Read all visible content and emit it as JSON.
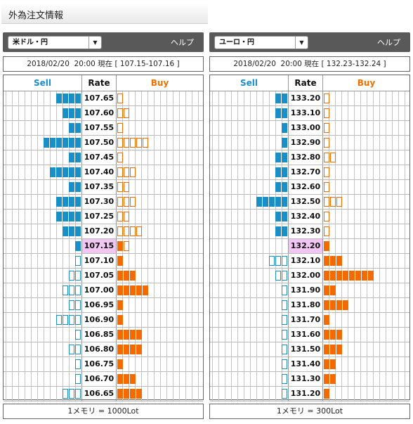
{
  "page_title": "外為注文情報",
  "help_label": "ヘルプ",
  "headers": {
    "sell": "Sell",
    "rate": "Rate",
    "buy": "Buy"
  },
  "colors": {
    "sell": "#1a8fc7",
    "buy": "#f26a00",
    "current_rate_bg": "#f2c6f2"
  },
  "panels": [
    {
      "pair": "米ドル・円",
      "rate_info": "2018/02/20  20:00 現在 [ 107.15-107.16 ]",
      "current_rate": "107.15",
      "footer": "1メモリ = 1000Lot",
      "rows": [
        {
          "rate": "107.65",
          "sell": 4,
          "sell_style": "fill",
          "buy": 1,
          "buy_style": "outline"
        },
        {
          "rate": "107.60",
          "sell": 3,
          "sell_style": "fill",
          "buy": 2,
          "buy_style": "outline"
        },
        {
          "rate": "107.55",
          "sell": 2,
          "sell_style": "fill",
          "buy": 1,
          "buy_style": "outline"
        },
        {
          "rate": "107.50",
          "sell": 6,
          "sell_style": "fill",
          "buy": 5,
          "buy_style": "outline"
        },
        {
          "rate": "107.45",
          "sell": 2,
          "sell_style": "fill",
          "buy": 1,
          "buy_style": "outline"
        },
        {
          "rate": "107.40",
          "sell": 5,
          "sell_style": "fill",
          "buy": 3,
          "buy_style": "outline"
        },
        {
          "rate": "107.35",
          "sell": 2,
          "sell_style": "fill",
          "buy": 2,
          "buy_style": "outline"
        },
        {
          "rate": "107.30",
          "sell": 4,
          "sell_style": "fill",
          "buy": 3,
          "buy_style": "outline"
        },
        {
          "rate": "107.25",
          "sell": 4,
          "sell_style": "fill",
          "buy": 2,
          "buy_style": "outline"
        },
        {
          "rate": "107.20",
          "sell": 3,
          "sell_style": "fill",
          "buy": 4,
          "buy_style": "outline"
        },
        {
          "rate": "107.15",
          "sell": 1,
          "sell_style": "fill",
          "buy": 2,
          "buy_style": "mixed"
        },
        {
          "rate": "107.10",
          "sell": 1,
          "sell_style": "outline",
          "buy": 1,
          "buy_style": "fill"
        },
        {
          "rate": "107.05",
          "sell": 2,
          "sell_style": "outline",
          "buy": 3,
          "buy_style": "fill"
        },
        {
          "rate": "107.00",
          "sell": 3,
          "sell_style": "outline",
          "buy": 5,
          "buy_style": "fill"
        },
        {
          "rate": "106.95",
          "sell": 2,
          "sell_style": "outline",
          "buy": 1,
          "buy_style": "fill"
        },
        {
          "rate": "106.90",
          "sell": 4,
          "sell_style": "outline",
          "buy": 1,
          "buy_style": "fill"
        },
        {
          "rate": "106.85",
          "sell": 1,
          "sell_style": "outline",
          "buy": 4,
          "buy_style": "fill"
        },
        {
          "rate": "106.80",
          "sell": 2,
          "sell_style": "outline",
          "buy": 4,
          "buy_style": "fill"
        },
        {
          "rate": "106.75",
          "sell": 1,
          "sell_style": "outline",
          "buy": 1,
          "buy_style": "fill"
        },
        {
          "rate": "106.70",
          "sell": 1,
          "sell_style": "outline",
          "buy": 3,
          "buy_style": "fill"
        },
        {
          "rate": "106.65",
          "sell": 3,
          "sell_style": "outline",
          "buy": 4,
          "buy_style": "fill"
        }
      ]
    },
    {
      "pair": "ユーロ・円",
      "rate_info": "2018/02/20  20:00 現在 [ 132.23-132.24 ]",
      "current_rate": "132.20",
      "footer": "1メモリ = 300Lot",
      "rows": [
        {
          "rate": "133.20",
          "sell": 2,
          "sell_style": "fill",
          "buy": 1,
          "buy_style": "outline"
        },
        {
          "rate": "133.10",
          "sell": 2,
          "sell_style": "fill",
          "buy": 1,
          "buy_style": "outline"
        },
        {
          "rate": "133.00",
          "sell": 1,
          "sell_style": "fill",
          "buy": 1,
          "buy_style": "outline"
        },
        {
          "rate": "132.90",
          "sell": 1,
          "sell_style": "fill",
          "buy": 1,
          "buy_style": "outline"
        },
        {
          "rate": "132.80",
          "sell": 2,
          "sell_style": "fill",
          "buy": 2,
          "buy_style": "outline"
        },
        {
          "rate": "132.70",
          "sell": 2,
          "sell_style": "fill",
          "buy": 1,
          "buy_style": "outline"
        },
        {
          "rate": "132.60",
          "sell": 2,
          "sell_style": "fill",
          "buy": 1,
          "buy_style": "outline"
        },
        {
          "rate": "132.50",
          "sell": 5,
          "sell_style": "fill",
          "buy": 3,
          "buy_style": "outline"
        },
        {
          "rate": "132.40",
          "sell": 2,
          "sell_style": "fill",
          "buy": 1,
          "buy_style": "outline"
        },
        {
          "rate": "132.30",
          "sell": 2,
          "sell_style": "fill",
          "buy": 1,
          "buy_style": "outline"
        },
        {
          "rate": "132.20",
          "sell": 0,
          "sell_style": "fill",
          "buy": 1,
          "buy_style": "fill"
        },
        {
          "rate": "132.10",
          "sell": 3,
          "sell_style": "outline",
          "buy": 3,
          "buy_style": "fill"
        },
        {
          "rate": "132.00",
          "sell": 2,
          "sell_style": "outline",
          "buy": 8,
          "buy_style": "fill"
        },
        {
          "rate": "131.90",
          "sell": 1,
          "sell_style": "outline",
          "buy": 2,
          "buy_style": "fill"
        },
        {
          "rate": "131.80",
          "sell": 1,
          "sell_style": "outline",
          "buy": 4,
          "buy_style": "fill"
        },
        {
          "rate": "131.70",
          "sell": 1,
          "sell_style": "outline",
          "buy": 1,
          "buy_style": "fill"
        },
        {
          "rate": "131.60",
          "sell": 1,
          "sell_style": "outline",
          "buy": 3,
          "buy_style": "fill"
        },
        {
          "rate": "131.50",
          "sell": 1,
          "sell_style": "outline",
          "buy": 3,
          "buy_style": "fill"
        },
        {
          "rate": "131.40",
          "sell": 1,
          "sell_style": "outline",
          "buy": 2,
          "buy_style": "fill"
        },
        {
          "rate": "131.30",
          "sell": 1,
          "sell_style": "outline",
          "buy": 2,
          "buy_style": "fill"
        },
        {
          "rate": "131.20",
          "sell": 1,
          "sell_style": "outline",
          "buy": 1,
          "buy_style": "fill"
        }
      ]
    }
  ]
}
